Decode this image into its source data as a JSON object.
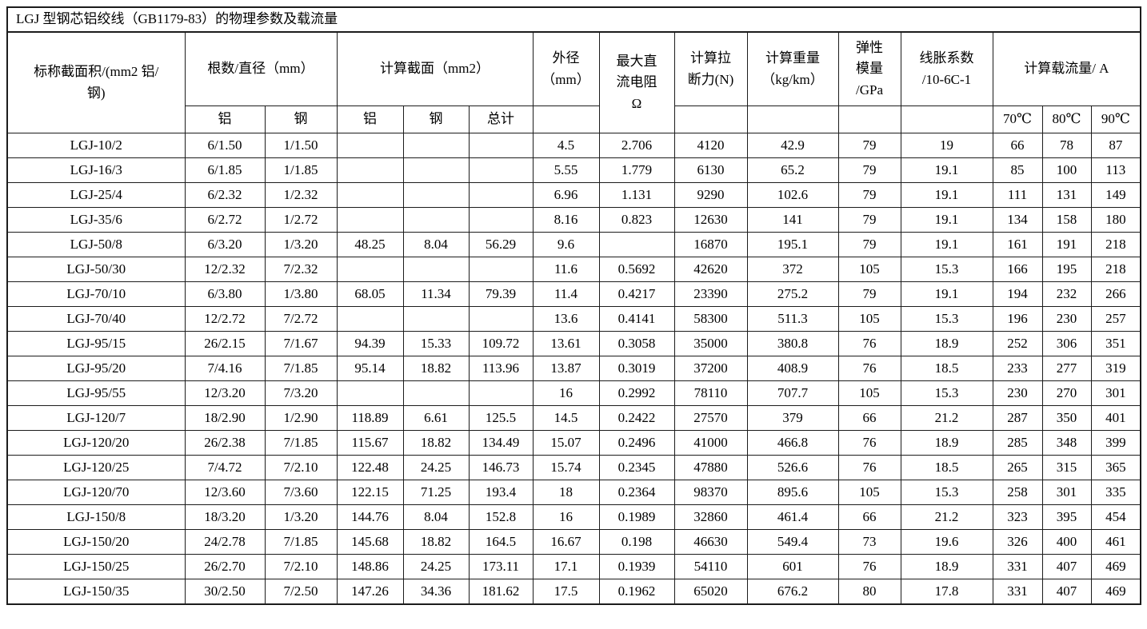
{
  "title": "LGJ 型钢芯铝绞线（GB1179-83）的物理参数及载流量",
  "table": {
    "header": {
      "nominal_area": "标称截面积/(mm2 铝/\n钢)",
      "strands_diameter": "根数/直径（mm）",
      "calc_section": "计算截面（mm2）",
      "outer_diameter": "外径\n（mm）",
      "max_dc_resistance": "最大直\n流电阻\nΩ",
      "breaking_force": "计算拉\n断力(N)",
      "weight": "计算重量\n（kg/km）",
      "elastic_modulus": "弹性\n模量\n/GPa",
      "expansion_coeff": "线胀系数\n/10-6C-1",
      "ampacity": "计算载流量/ A",
      "sub": {
        "al1": "铝",
        "steel1": "钢",
        "al2": "铝",
        "steel2": "钢",
        "total": "总计",
        "t70": "70℃",
        "t80": "80℃",
        "t90": "90℃"
      }
    },
    "column_keys": [
      "model",
      "strands-al",
      "strands-steel",
      "section-al",
      "section-steel",
      "section-total",
      "outer-diameter",
      "max-dc-resistance",
      "breaking-force",
      "weight",
      "elastic-modulus",
      "expansion-coeff",
      "ampacity-70c",
      "ampacity-80c",
      "ampacity-90c"
    ],
    "rows": [
      [
        "LGJ-10/2",
        "6/1.50",
        "1/1.50",
        "",
        "",
        "",
        "4.5",
        "2.706",
        "4120",
        "42.9",
        "79",
        "19",
        "66",
        "78",
        "87"
      ],
      [
        "LGJ-16/3",
        "6/1.85",
        "1/1.85",
        "",
        "",
        "",
        "5.55",
        "1.779",
        "6130",
        "65.2",
        "79",
        "19.1",
        "85",
        "100",
        "113"
      ],
      [
        "LGJ-25/4",
        "6/2.32",
        "1/2.32",
        "",
        "",
        "",
        "6.96",
        "1.131",
        "9290",
        "102.6",
        "79",
        "19.1",
        "111",
        "131",
        "149"
      ],
      [
        "LGJ-35/6",
        "6/2.72",
        "1/2.72",
        "",
        "",
        "",
        "8.16",
        "0.823",
        "12630",
        "141",
        "79",
        "19.1",
        "134",
        "158",
        "180"
      ],
      [
        "LGJ-50/8",
        "6/3.20",
        "1/3.20",
        "48.25",
        "8.04",
        "56.29",
        "9.6",
        "",
        "16870",
        "195.1",
        "79",
        "19.1",
        "161",
        "191",
        "218"
      ],
      [
        "LGJ-50/30",
        "12/2.32",
        "7/2.32",
        "",
        "",
        "",
        "11.6",
        "0.5692",
        "42620",
        "372",
        "105",
        "15.3",
        "166",
        "195",
        "218"
      ],
      [
        "LGJ-70/10",
        "6/3.80",
        "1/3.80",
        "68.05",
        "11.34",
        "79.39",
        "11.4",
        "0.4217",
        "23390",
        "275.2",
        "79",
        "19.1",
        "194",
        "232",
        "266"
      ],
      [
        "LGJ-70/40",
        "12/2.72",
        "7/2.72",
        "",
        "",
        "",
        "13.6",
        "0.4141",
        "58300",
        "511.3",
        "105",
        "15.3",
        "196",
        "230",
        "257"
      ],
      [
        "LGJ-95/15",
        "26/2.15",
        "7/1.67",
        "94.39",
        "15.33",
        "109.72",
        "13.61",
        "0.3058",
        "35000",
        "380.8",
        "76",
        "18.9",
        "252",
        "306",
        "351"
      ],
      [
        "LGJ-95/20",
        "7/4.16",
        "7/1.85",
        "95.14",
        "18.82",
        "113.96",
        "13.87",
        "0.3019",
        "37200",
        "408.9",
        "76",
        "18.5",
        "233",
        "277",
        "319"
      ],
      [
        "LGJ-95/55",
        "12/3.20",
        "7/3.20",
        "",
        "",
        "",
        "16",
        "0.2992",
        "78110",
        "707.7",
        "105",
        "15.3",
        "230",
        "270",
        "301"
      ],
      [
        "LGJ-120/7",
        "18/2.90",
        "1/2.90",
        "118.89",
        "6.61",
        "125.5",
        "14.5",
        "0.2422",
        "27570",
        "379",
        "66",
        "21.2",
        "287",
        "350",
        "401"
      ],
      [
        "LGJ-120/20",
        "26/2.38",
        "7/1.85",
        "115.67",
        "18.82",
        "134.49",
        "15.07",
        "0.2496",
        "41000",
        "466.8",
        "76",
        "18.9",
        "285",
        "348",
        "399"
      ],
      [
        "LGJ-120/25",
        "7/4.72",
        "7/2.10",
        "122.48",
        "24.25",
        "146.73",
        "15.74",
        "0.2345",
        "47880",
        "526.6",
        "76",
        "18.5",
        "265",
        "315",
        "365"
      ],
      [
        "LGJ-120/70",
        "12/3.60",
        "7/3.60",
        "122.15",
        "71.25",
        "193.4",
        "18",
        "0.2364",
        "98370",
        "895.6",
        "105",
        "15.3",
        "258",
        "301",
        "335"
      ],
      [
        "LGJ-150/8",
        "18/3.20",
        "1/3.20",
        "144.76",
        "8.04",
        "152.8",
        "16",
        "0.1989",
        "32860",
        "461.4",
        "66",
        "21.2",
        "323",
        "395",
        "454"
      ],
      [
        "LGJ-150/20",
        "24/2.78",
        "7/1.85",
        "145.68",
        "18.82",
        "164.5",
        "16.67",
        "0.198",
        "46630",
        "549.4",
        "73",
        "19.6",
        "326",
        "400",
        "461"
      ],
      [
        "LGJ-150/25",
        "26/2.70",
        "7/2.10",
        "148.86",
        "24.25",
        "173.11",
        "17.1",
        "0.1939",
        "54110",
        "601",
        "76",
        "18.9",
        "331",
        "407",
        "469"
      ],
      [
        "LGJ-150/35",
        "30/2.50",
        "7/2.50",
        "147.26",
        "34.36",
        "181.62",
        "17.5",
        "0.1962",
        "65020",
        "676.2",
        "80",
        "17.8",
        "331",
        "407",
        "469"
      ]
    ]
  }
}
